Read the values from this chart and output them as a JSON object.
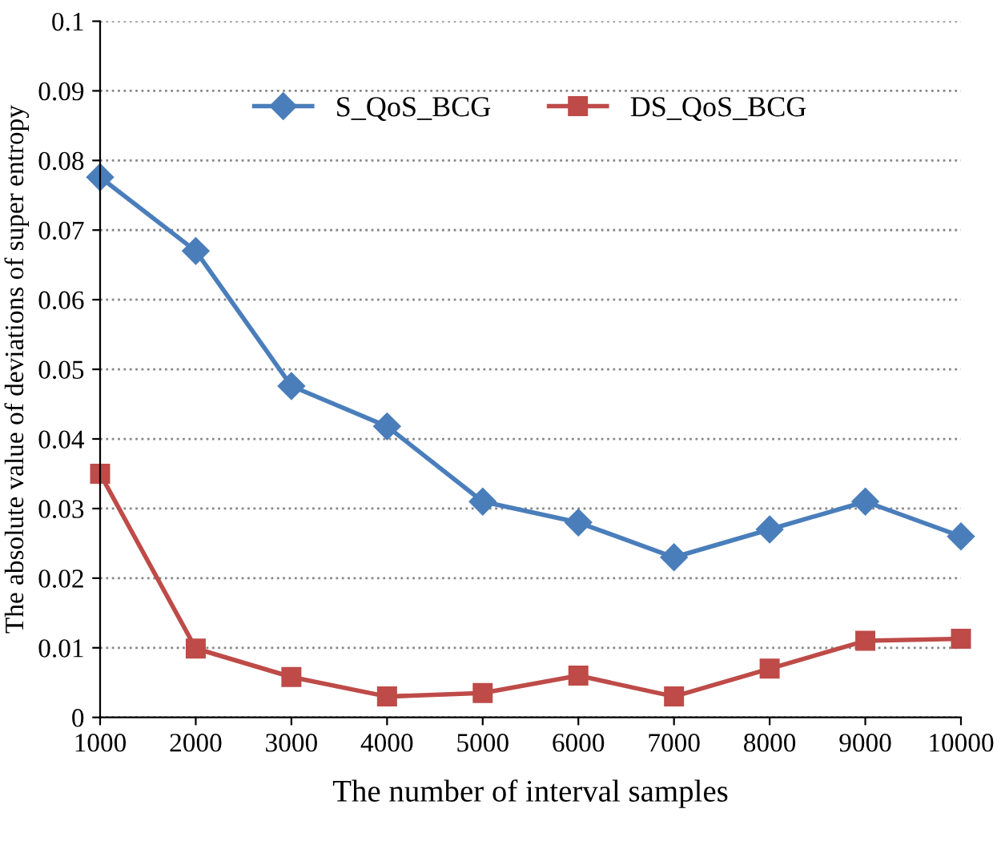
{
  "chart_data": {
    "type": "line",
    "xlabel": "The number of interval samples",
    "ylabel": "The absolute value of deviations of super entropy",
    "x": [
      1000,
      2000,
      3000,
      4000,
      5000,
      6000,
      7000,
      8000,
      9000,
      10000
    ],
    "series": [
      {
        "name": "S_QoS_BCG",
        "color": "#4a7ebb",
        "marker": "diamond",
        "values": [
          0.0776,
          0.067,
          0.0476,
          0.0418,
          0.031,
          0.028,
          0.023,
          0.027,
          0.031,
          0.026
        ]
      },
      {
        "name": "DS_QoS_BCG",
        "color": "#be4b48",
        "marker": "square",
        "values": [
          0.035,
          0.0099,
          0.0058,
          0.003,
          0.0035,
          0.006,
          0.003,
          0.007,
          0.011,
          0.0113
        ]
      }
    ],
    "xlim": [
      1000,
      10000
    ],
    "xticks": [
      1000,
      2000,
      3000,
      4000,
      5000,
      6000,
      7000,
      8000,
      9000,
      10000
    ],
    "ylim": [
      0,
      0.1
    ],
    "yticks": [
      0,
      0.01,
      0.02,
      0.03,
      0.04,
      0.05,
      0.06,
      0.07,
      0.08,
      0.09,
      0.1
    ],
    "grid": "y",
    "legend": "top",
    "line_style": "solid"
  }
}
